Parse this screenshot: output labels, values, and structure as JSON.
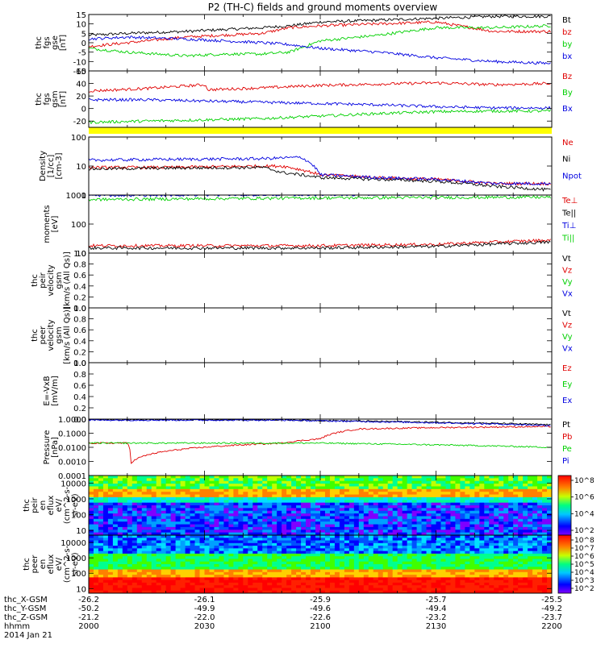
{
  "title": "P2 (TH-C) fields and ground moments overview",
  "chart_data": [
    {
      "type": "line",
      "panel": "fgs",
      "ylabel": [
        "thc",
        "fgs",
        "gse",
        "[nT]"
      ],
      "ylim": [
        -15,
        15
      ],
      "yticks": [
        "15",
        "10",
        "5",
        "0",
        "-5",
        "-10",
        "-15"
      ],
      "series": [
        {
          "name": "Bt",
          "color": "#000000",
          "x": [
            2000,
            2010,
            2025,
            2035,
            2045,
            2052,
            2100,
            2115,
            2130,
            2145,
            2200
          ],
          "values": [
            4,
            5,
            6,
            7,
            8,
            9,
            11,
            12,
            13,
            14,
            14
          ]
        },
        {
          "name": "bz",
          "color": "#e00000",
          "x": [
            2000,
            2010,
            2025,
            2035,
            2045,
            2052,
            2100,
            2115,
            2130,
            2145,
            2200
          ],
          "values": [
            -2,
            0,
            3,
            4,
            5,
            8,
            9,
            10,
            11,
            6,
            6
          ]
        },
        {
          "name": "by",
          "color": "#00d000",
          "x": [
            2000,
            2010,
            2025,
            2035,
            2045,
            2052,
            2100,
            2115,
            2130,
            2145,
            2200
          ],
          "values": [
            -3,
            -5,
            -7,
            -6,
            -6,
            -5,
            1,
            4,
            8,
            8,
            9
          ]
        },
        {
          "name": "bx",
          "color": "#0000e0",
          "x": [
            2000,
            2010,
            2025,
            2035,
            2045,
            2052,
            2100,
            2115,
            2130,
            2145,
            2200
          ],
          "values": [
            2,
            3,
            2,
            1,
            0,
            -1,
            -3,
            -5,
            -8,
            -10,
            -11
          ]
        }
      ]
    },
    {
      "type": "line",
      "panel": "fgs gsm",
      "ylabel": [
        "thc",
        "fgs",
        "gsm",
        "[nT]"
      ],
      "ylim": [
        -30,
        60
      ],
      "yticks": [
        "60",
        "40",
        "20",
        "0",
        "-20"
      ],
      "series": [
        {
          "name": "Bz",
          "color": "#e00000",
          "x": [
            2000,
            2015,
            2030,
            2031,
            2045,
            2100,
            2115,
            2130,
            2145,
            2200
          ],
          "values": [
            28,
            32,
            38,
            30,
            33,
            37,
            39,
            41,
            38,
            40
          ]
        },
        {
          "name": "By",
          "color": "#00d000",
          "x": [
            2000,
            2015,
            2030,
            2045,
            2100,
            2115,
            2130,
            2145,
            2200
          ],
          "values": [
            -22,
            -20,
            -18,
            -16,
            -12,
            -8,
            -5,
            -4,
            -4
          ]
        },
        {
          "name": "Bx",
          "color": "#0000e0",
          "x": [
            2000,
            2015,
            2030,
            2045,
            2100,
            2115,
            2130,
            2145,
            2200
          ],
          "values": [
            14,
            14,
            12,
            10,
            8,
            6,
            3,
            1,
            1
          ]
        }
      ]
    },
    {
      "type": "line",
      "panel": "Density",
      "scale": "log",
      "ylabel": [
        "Density",
        "[1/cc]",
        "[cm-3]"
      ],
      "ylim": [
        1,
        100
      ],
      "yticks": [
        "100",
        "10",
        "1"
      ],
      "series": [
        {
          "name": "Ne",
          "color": "#e00000",
          "x": [
            2000,
            2020,
            2045,
            2050,
            2100,
            2115,
            2130,
            2145,
            2200
          ],
          "values": [
            9,
            9,
            10,
            10,
            5,
            4,
            3.5,
            2.5,
            2.5
          ]
        },
        {
          "name": "Ni",
          "color": "#000000",
          "x": [
            2000,
            2020,
            2045,
            2050,
            2100,
            2115,
            2130,
            2145,
            2200
          ],
          "values": [
            8,
            8.5,
            9,
            6,
            4,
            3.5,
            3,
            2,
            1.5
          ]
        },
        {
          "name": "Npot",
          "color": "#0000e0",
          "x": [
            2000,
            2020,
            2045,
            2055,
            2100,
            2115,
            2130,
            2145,
            2200
          ],
          "values": [
            16,
            17,
            18,
            20,
            5,
            4,
            3.5,
            2.5,
            2.5
          ]
        }
      ]
    },
    {
      "type": "line",
      "panel": "moments T",
      "scale": "log",
      "ylabel": [
        "moments",
        "[eV]"
      ],
      "ylim": [
        10,
        1000
      ],
      "yticks": [
        "1000",
        "100",
        "10"
      ],
      "series": [
        {
          "name": "Te⊥",
          "color": "#e00000",
          "x": [
            2000,
            2100,
            2130,
            2200
          ],
          "values": [
            18,
            18,
            20,
            28
          ]
        },
        {
          "name": "Te||",
          "color": "#000000",
          "x": [
            2000,
            2100,
            2130,
            2200
          ],
          "values": [
            15,
            15,
            17,
            24
          ]
        },
        {
          "name": "Ti⊥",
          "color": "#0000e0",
          "x": [
            2000,
            2100,
            2200
          ],
          "values": [
            1000,
            1050,
            1100
          ]
        },
        {
          "name": "Ti||",
          "color": "#00d000",
          "x": [
            2000,
            2100,
            2200
          ],
          "values": [
            700,
            800,
            850
          ]
        }
      ]
    },
    {
      "type": "line",
      "panel": "peir velocity",
      "ylabel": [
        "thc",
        "peir",
        "velocity",
        "gsm",
        "[km/s (All Qs)]"
      ],
      "ylim": [
        0,
        1
      ],
      "yticks": [
        "1.0",
        "0.8",
        "0.6",
        "0.4",
        "0.2",
        "0.0"
      ],
      "series": [
        {
          "name": "Vt",
          "color": "#000000",
          "x": [],
          "values": []
        },
        {
          "name": "Vz",
          "color": "#e00000",
          "x": [],
          "values": []
        },
        {
          "name": "Vy",
          "color": "#00d000",
          "x": [],
          "values": []
        },
        {
          "name": "Vx",
          "color": "#0000e0",
          "x": [],
          "values": []
        }
      ]
    },
    {
      "type": "line",
      "panel": "peer velocity",
      "ylabel": [
        "thc",
        "peer",
        "velocity",
        "gsm",
        "[km/s (All Qs)]"
      ],
      "ylim": [
        0,
        1
      ],
      "yticks": [
        "1.0",
        "0.8",
        "0.6",
        "0.4",
        "0.2",
        "0.0"
      ],
      "series": [
        {
          "name": "Vt",
          "color": "#000000",
          "x": [],
          "values": []
        },
        {
          "name": "Vz",
          "color": "#e00000",
          "x": [],
          "values": []
        },
        {
          "name": "Vy",
          "color": "#00d000",
          "x": [],
          "values": []
        },
        {
          "name": "Vx",
          "color": "#0000e0",
          "x": [],
          "values": []
        }
      ]
    },
    {
      "type": "line",
      "panel": "E field",
      "ylabel": [
        "E=-VxB",
        "[mV/m]"
      ],
      "ylim": [
        0,
        1
      ],
      "yticks": [
        "1.0",
        "0.8",
        "0.6",
        "0.4",
        "0.2",
        "0.0"
      ],
      "series": [
        {
          "name": "Ez",
          "color": "#e00000",
          "x": [],
          "values": []
        },
        {
          "name": "Ey",
          "color": "#00d000",
          "x": [],
          "values": []
        },
        {
          "name": "Ex",
          "color": "#0000e0",
          "x": [],
          "values": []
        }
      ]
    },
    {
      "type": "line",
      "panel": "Pressure",
      "scale": "log",
      "ylabel": [
        "Pressure",
        "[nPa]"
      ],
      "ylim": [
        0.0001,
        1
      ],
      "yticks": [
        "1.0000",
        "0.1000",
        "0.0100",
        "0.0010",
        "0.0001"
      ],
      "series": [
        {
          "name": "Pt",
          "color": "#000000",
          "x": [
            2000,
            2050,
            2100,
            2130,
            2145,
            2200
          ],
          "values": [
            0.9,
            0.9,
            0.8,
            0.6,
            0.5,
            0.4
          ]
        },
        {
          "name": "Pb",
          "color": "#e00000",
          "x": [
            2000,
            2010,
            2011,
            2050,
            2100,
            2110,
            2130,
            2200
          ],
          "values": [
            0.02,
            0.02,
            0.0008,
            0.02,
            0.04,
            0.2,
            0.25,
            0.3
          ]
        },
        {
          "name": "Pe",
          "color": "#00d000",
          "x": [
            2000,
            2050,
            2100,
            2130,
            2200
          ],
          "values": [
            0.02,
            0.02,
            0.02,
            0.015,
            0.01
          ]
        },
        {
          "name": "Pi",
          "color": "#0000e0",
          "x": [
            2000,
            2050,
            2100,
            2130,
            2200
          ],
          "values": [
            0.85,
            0.85,
            0.75,
            0.55,
            0.35
          ]
        }
      ]
    },
    {
      "type": "heatmap",
      "panel": "peir eflux",
      "scale": "log",
      "ylabel": [
        "thc",
        "peir",
        "en",
        "eflux",
        "eV/",
        "(cm^2-s-",
        "sr-eV)"
      ],
      "ylim": [
        5,
        30000
      ],
      "yticks": [
        "10000",
        "1000",
        "100",
        "10"
      ],
      "colorbar_ticks": [
        "10^8",
        "10^6",
        "10^4",
        "10^2"
      ]
    },
    {
      "type": "heatmap",
      "panel": "peer eflux",
      "scale": "log",
      "ylabel": [
        "thc",
        "peer",
        "en",
        "eflux",
        "eV/",
        "(cm^2-s-",
        "sr-eV)"
      ],
      "ylim": [
        5,
        30000
      ],
      "yticks": [
        "10000",
        "1000",
        "100",
        "10"
      ],
      "colorbar_ticks": [
        "10^8",
        "10^7",
        "10^6",
        "10^5",
        "10^4",
        "10^3",
        "10^2"
      ]
    }
  ],
  "footer": {
    "labels": [
      "thc_X-GSM",
      "thc_Y-GSM",
      "thc_Z-GSM",
      "hhmm",
      "2014 Jan 21"
    ],
    "columns": [
      [
        "-26.2",
        "-50.2",
        "-21.2",
        "2000"
      ],
      [
        "-26.1",
        "-49.9",
        "-22.0",
        "2030"
      ],
      [
        "-25.9",
        "-49.6",
        "-22.6",
        "2100"
      ],
      [
        "-25.7",
        "-49.4",
        "-23.2",
        "2130"
      ],
      [
        "-25.5",
        "-49.2",
        "-23.7",
        "2200"
      ]
    ]
  }
}
